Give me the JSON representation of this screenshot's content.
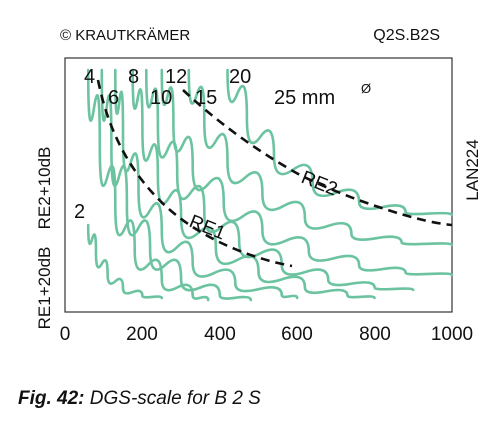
{
  "chart_data": {
    "type": "line",
    "header_left": "© KRAUTKRÄMER",
    "header_right": "Q2S.B2S",
    "left_label_upper": "RE2+10dB",
    "left_label_lower": "RE1+20dB",
    "right_label": "LAN224",
    "x_ticks": [
      "0",
      "200",
      "400",
      "600",
      "800",
      "1000"
    ],
    "xlim": [
      0,
      1000
    ],
    "curve_labels": [
      "4",
      "6",
      "8",
      "10",
      "12",
      "15",
      "20",
      "25 mm"
    ],
    "unit_superscript": "Ø",
    "small_curve_label": "2",
    "reference_lines": [
      {
        "name": "RE1",
        "label": "RE1"
      },
      {
        "name": "RE2",
        "label": "RE2"
      }
    ],
    "series": [
      {
        "label": "2",
        "x": [
          60,
          80,
          110,
          150,
          200,
          250
        ]
      },
      {
        "label": "4",
        "x": [
          60,
          90,
          130,
          180,
          250,
          330,
          370
        ]
      },
      {
        "label": "6",
        "x": [
          95,
          120,
          160,
          220,
          300,
          400,
          480
        ]
      },
      {
        "label": "8",
        "x": [
          130,
          150,
          190,
          250,
          330,
          440,
          560,
          600
        ]
      },
      {
        "label": "10",
        "x": [
          175,
          200,
          240,
          300,
          390,
          500,
          620,
          730,
          800
        ]
      },
      {
        "label": "12",
        "x": [
          210,
          240,
          290,
          360,
          450,
          560,
          680,
          800,
          900
        ]
      },
      {
        "label": "15",
        "x": [
          250,
          280,
          330,
          410,
          510,
          630,
          760,
          880,
          1000
        ]
      },
      {
        "label": "20",
        "x": [
          320,
          360,
          420,
          510,
          620,
          740,
          870,
          1000
        ]
      },
      {
        "label": "25",
        "x": [
          420,
          470,
          540,
          640,
          760,
          880,
          1000
        ]
      }
    ]
  },
  "caption": {
    "bold": "Fig. 42:",
    "italic": " DGS-scale for B 2 S"
  }
}
